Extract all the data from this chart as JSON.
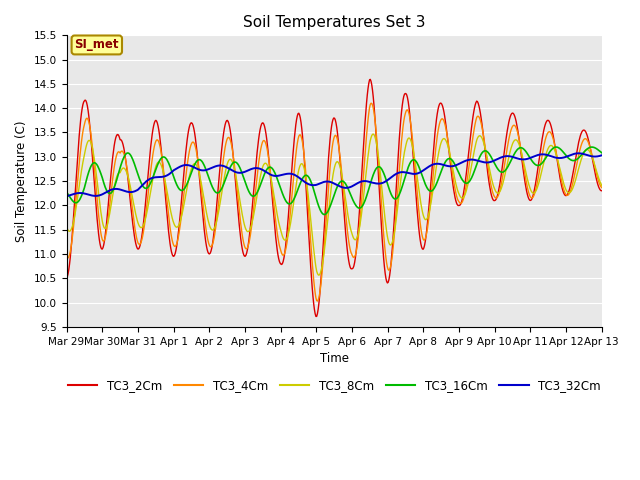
{
  "title": "Soil Temperatures Set 3",
  "xlabel": "Time",
  "ylabel": "Soil Temperature (C)",
  "ylim": [
    9.5,
    15.5
  ],
  "fig_facecolor": "#ffffff",
  "plot_bg_color": "#e8e8e8",
  "grid_color": "#ffffff",
  "legend_label": "SI_met",
  "legend_bg": "#ffff99",
  "legend_border": "#aa8800",
  "series_colors": {
    "TC3_2Cm": "#dd0000",
    "TC3_4Cm": "#ff8800",
    "TC3_8Cm": "#cccc00",
    "TC3_16Cm": "#00bb00",
    "TC3_32Cm": "#0000cc"
  },
  "x_tick_labels": [
    "Mar 29",
    "Mar 30",
    "Mar 31",
    "Apr 1",
    "Apr 2",
    "Apr 3",
    "Apr 4",
    "Apr 5",
    "Apr 6",
    "Apr 7",
    "Apr 8",
    "Apr 9",
    "Apr 10",
    "Apr 11",
    "Apr 12",
    "Apr 13"
  ],
  "n_points": 720
}
